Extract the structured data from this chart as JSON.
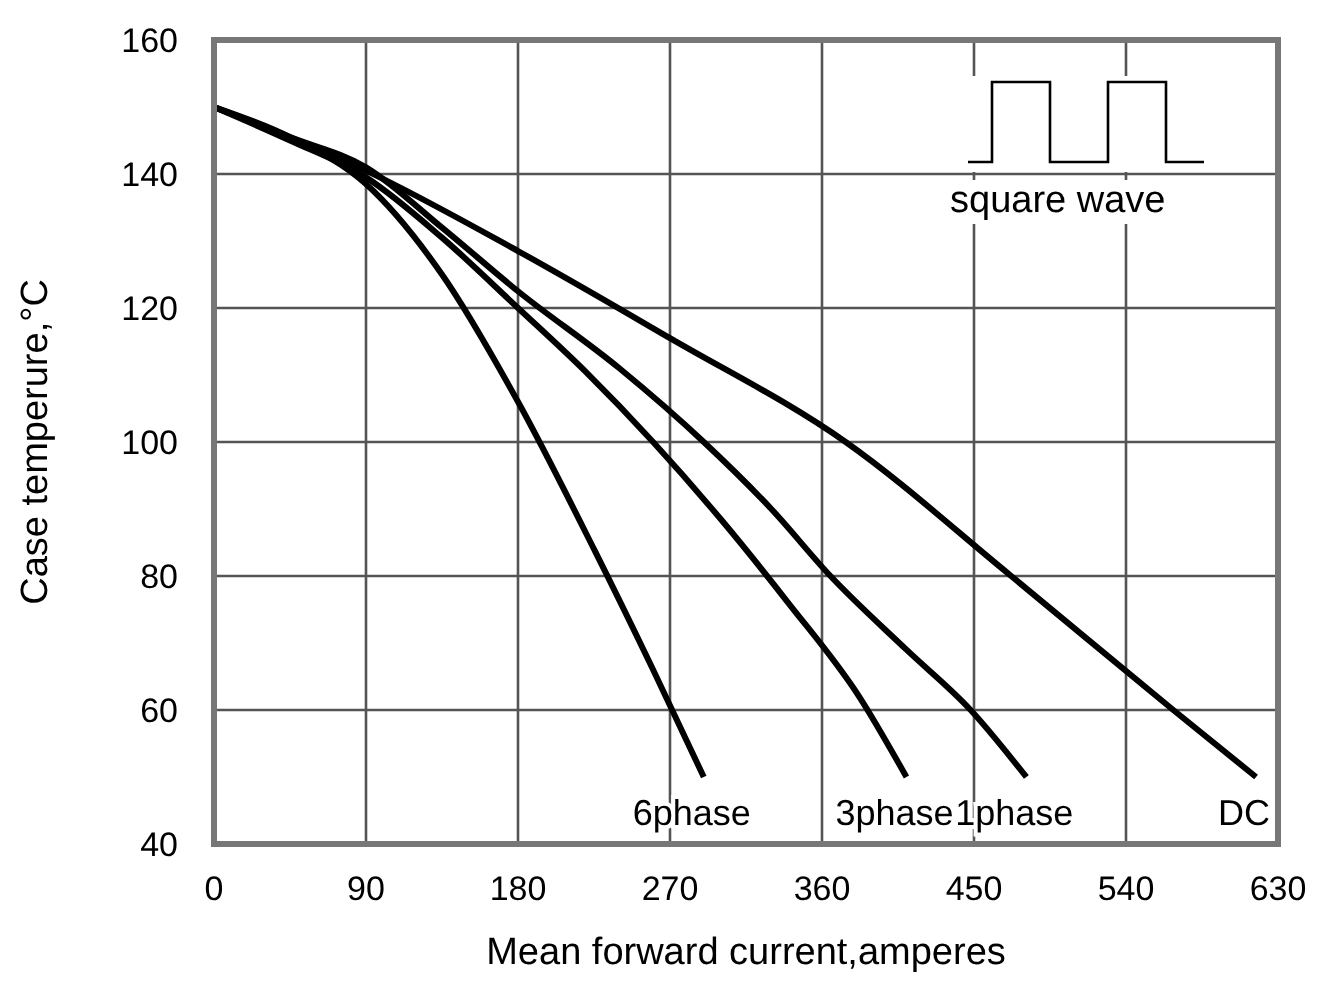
{
  "chart_data": {
    "type": "line",
    "xlabel": "Mean forward current,amperes",
    "ylabel": "Case temperure,°C",
    "xlim": [
      0,
      630
    ],
    "xticks": [
      0,
      90,
      180,
      270,
      360,
      450,
      540,
      630
    ],
    "ylim": [
      40,
      160
    ],
    "yticks": [
      40,
      60,
      80,
      100,
      120,
      140,
      160
    ],
    "grid": true,
    "annotations": [
      "square wave"
    ],
    "series": [
      {
        "name": "6phase",
        "color": "#000000",
        "x": [
          0,
          45,
          90,
          135,
          180,
          225,
          260,
          290
        ],
        "values": [
          150,
          145.5,
          138.5,
          125,
          106,
          84,
          66,
          50
        ]
      },
      {
        "name": "3phase",
        "color": "#000000",
        "x": [
          0,
          45,
          90,
          135,
          180,
          220,
          260,
          300,
          340,
          382,
          410
        ],
        "values": [
          150,
          145,
          139.5,
          130.5,
          120,
          110.5,
          100,
          88.5,
          76,
          62,
          50
        ]
      },
      {
        "name": "1phase",
        "color": "#000000",
        "x": [
          0,
          45,
          90,
          135,
          180,
          240,
          290,
          330,
          365,
          410,
          448,
          481
        ],
        "values": [
          150,
          145.5,
          141,
          132,
          122.5,
          111,
          100,
          90,
          80,
          69,
          60,
          50
        ]
      },
      {
        "name": "DC",
        "color": "#000000",
        "x": [
          0,
          90,
          180,
          270,
          374,
          472,
          568,
          617
        ],
        "values": [
          150,
          140.5,
          128.5,
          115.5,
          100,
          80,
          60,
          50
        ]
      }
    ]
  }
}
